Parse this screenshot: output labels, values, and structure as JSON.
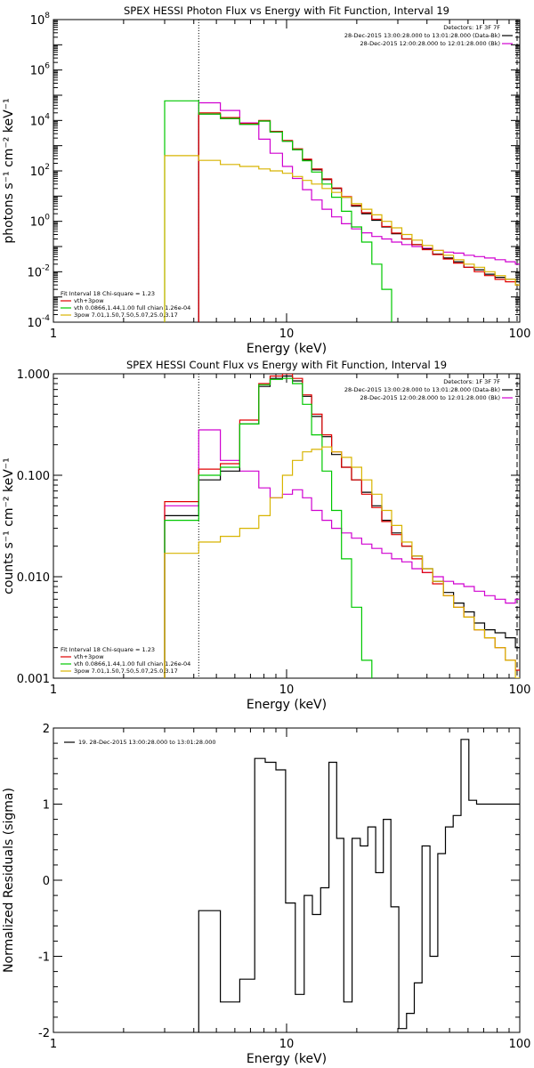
{
  "colors": {
    "black": "#000000",
    "red": "#e00000",
    "green": "#00c800",
    "magenta": "#d000d0",
    "yellow": "#d8b400"
  },
  "chart_data": [
    {
      "type": "line",
      "title": "SPEX HESSI Photon Flux vs Energy with Fit Function, Interval 19",
      "xlabel": "Energy (keV)",
      "ylabel": "photons s⁻¹ cm⁻² keV⁻¹",
      "xscale": "log",
      "yscale": "log",
      "xlim": [
        1,
        100
      ],
      "ylim": [
        0.0001,
        100000000
      ],
      "xtick_labels": [
        {
          "v": 1,
          "t": "1"
        },
        {
          "v": 10,
          "t": "10"
        },
        {
          "v": 100,
          "t": "100"
        }
      ],
      "ytick_labels": [
        {
          "v": 0.0001,
          "b": "10",
          "e": "-4"
        },
        {
          "v": 0.01,
          "b": "10",
          "e": "-2"
        },
        {
          "v": 1,
          "b": "10",
          "e": "0"
        },
        {
          "v": 100,
          "b": "10",
          "e": "2"
        },
        {
          "v": 10000,
          "b": "10",
          "e": "4"
        },
        {
          "v": 1000000,
          "b": "10",
          "e": "6"
        },
        {
          "v": 100000000,
          "b": "10",
          "e": "8"
        }
      ],
      "header_lines": [
        "Detectors: 1F 3F 7F",
        "28-Dec-2015 13:00:28.000 to 13:01:28.000 (Data-Bk)",
        "28-Dec-2015 12:00:28.000 to 12:01:28.000 (Bk)"
      ],
      "header_colors": [
        "black",
        "black",
        "magenta"
      ],
      "legend_title": "Fit Interval 18   Chi-square = 1.23",
      "legend": [
        {
          "label": "vth+3pow",
          "color": "red"
        },
        {
          "label": "vth 0.0866,1.44,1.00  full chian 1.26e-04",
          "color": "green"
        },
        {
          "label": "3pow 7.01,1.50,7.50,5.07,25.0,3.17",
          "color": "yellow"
        }
      ],
      "vline": 4.2,
      "series": [
        {
          "color": "magenta",
          "edges": [
            4.2,
            5.2,
            6.3,
            7.6,
            8.5,
            9.6,
            10.6,
            11.7,
            12.8,
            14.2,
            15.6,
            17.2,
            19.0,
            21.0,
            23.2,
            25.6,
            28.2,
            31.2,
            34.5,
            38.2,
            42.3,
            47.0,
            52.0,
            57.6,
            63.8,
            70.7,
            78.3,
            86.8,
            95.8,
            100
          ],
          "y": [
            50000,
            25000,
            8000,
            1800,
            500,
            150,
            50,
            18,
            7,
            3,
            1.5,
            0.8,
            0.5,
            0.35,
            0.25,
            0.2,
            0.15,
            0.12,
            0.1,
            0.085,
            0.07,
            0.06,
            0.055,
            0.045,
            0.04,
            0.035,
            0.03,
            0.025,
            0.02
          ]
        },
        {
          "color": "black",
          "edges": [
            4.2,
            5.2,
            6.3,
            7.6,
            8.5,
            9.6,
            10.6,
            11.7,
            12.8,
            14.2,
            15.6,
            17.2,
            19.0,
            21.0,
            23.2,
            25.6,
            28.2,
            31.2,
            34.5,
            38.2,
            42.3,
            47.0,
            52.0,
            57.6,
            63.8,
            70.7,
            78.3,
            86.8,
            95.8,
            100
          ],
          "y": [
            18000,
            12000,
            7000,
            9500,
            3500,
            1500,
            700,
            270,
            110,
            45,
            20,
            9,
            4,
            2,
            1.1,
            0.6,
            0.32,
            0.2,
            0.12,
            0.08,
            0.05,
            0.035,
            0.025,
            0.015,
            0.012,
            0.008,
            0.006,
            0.005,
            0.004
          ]
        },
        {
          "color": "red",
          "edges": [
            4.2,
            5.2,
            6.3,
            7.6,
            8.5,
            9.6,
            10.6,
            11.7,
            12.8,
            14.2,
            15.6,
            17.2,
            19.0,
            21.0,
            23.2,
            25.6,
            28.2,
            31.2,
            34.5,
            38.2,
            42.3,
            47.0,
            52.0,
            57.6,
            63.8,
            70.7,
            78.3,
            86.8,
            95.8,
            100
          ],
          "y": [
            20000,
            13000,
            7500,
            10000,
            3700,
            1600,
            750,
            290,
            120,
            48,
            21,
            9.5,
            4.3,
            2.2,
            1.2,
            0.62,
            0.34,
            0.2,
            0.12,
            0.075,
            0.048,
            0.032,
            0.022,
            0.015,
            0.01,
            0.007,
            0.005,
            0.004,
            0.003
          ]
        },
        {
          "color": "green",
          "edges": [
            3.0,
            4.2,
            5.2,
            6.3,
            7.6,
            8.5,
            9.6,
            10.6,
            11.7,
            12.8,
            14.2,
            15.6,
            17.2,
            19.0,
            21.0,
            23.2,
            25.6,
            28.2
          ],
          "y": [
            60000,
            18000,
            12000,
            7000,
            9500,
            3500,
            1500,
            700,
            250,
            90,
            30,
            9,
            2.5,
            0.6,
            0.15,
            0.02,
            0.002,
            0.0001
          ]
        },
        {
          "color": "yellow",
          "edges": [
            3.0,
            4.2,
            5.2,
            6.3,
            7.6,
            8.5,
            9.6,
            10.6,
            11.7,
            12.8,
            14.2,
            15.6,
            17.2,
            19.0,
            21.0,
            23.2,
            25.6,
            28.2,
            31.2,
            34.5,
            38.2,
            42.3,
            47.0,
            52.0,
            57.6,
            63.8,
            70.7,
            78.3,
            86.8,
            95.8,
            100
          ],
          "y": [
            400,
            260,
            180,
            150,
            120,
            100,
            80,
            60,
            42,
            30,
            20,
            14,
            9,
            5,
            3,
            1.8,
            1.0,
            0.55,
            0.3,
            0.18,
            0.11,
            0.07,
            0.045,
            0.03,
            0.02,
            0.015,
            0.01,
            0.007,
            0.005,
            0.003
          ]
        }
      ]
    },
    {
      "type": "line",
      "title": "SPEX HESSI Count Flux vs Energy with Fit Function, Interval 19",
      "xlabel": "Energy (keV)",
      "ylabel": "counts s⁻¹ cm⁻² keV⁻¹",
      "xscale": "log",
      "yscale": "log",
      "xlim": [
        1,
        100
      ],
      "ylim": [
        0.001,
        1.0
      ],
      "xtick_labels": [
        {
          "v": 1,
          "t": "1"
        },
        {
          "v": 10,
          "t": "10"
        },
        {
          "v": 100,
          "t": "100"
        }
      ],
      "ytick_labels": [
        {
          "v": 0.001,
          "t": "0.001"
        },
        {
          "v": 0.01,
          "t": "0.010"
        },
        {
          "v": 0.1,
          "t": "0.100"
        },
        {
          "v": 1,
          "t": "1.000"
        }
      ],
      "header_lines": [
        "Detectors: 1F 3F 7F",
        "28-Dec-2015 13:00:28.000 to 13:01:28.000 (Data-Bk)",
        "28-Dec-2015 12:00:28.000 to 12:01:28.000 (Bk)"
      ],
      "header_colors": [
        "black",
        "black",
        "magenta"
      ],
      "legend_title": "Fit Interval 18   Chi-square = 1.23",
      "legend": [
        {
          "label": "vth+3pow",
          "color": "red"
        },
        {
          "label": "vth 0.0866,1.44,1.00  full chian 1.26e-04",
          "color": "green"
        },
        {
          "label": "3pow 7.01,1.50,7.50,5.07,25.0,3.17",
          "color": "yellow"
        }
      ],
      "vline": 4.2,
      "series": [
        {
          "color": "magenta",
          "edges": [
            3.0,
            4.2,
            5.2,
            6.3,
            7.6,
            8.5,
            9.6,
            10.6,
            11.7,
            12.8,
            14.2,
            15.6,
            17.2,
            19.0,
            21.0,
            23.2,
            25.6,
            28.2,
            31.2,
            34.5,
            38.2,
            42.3,
            47.0,
            52.0,
            57.6,
            63.8,
            70.7,
            78.3,
            86.8,
            95.8,
            100
          ],
          "y": [
            0.05,
            0.28,
            0.14,
            0.11,
            0.075,
            0.06,
            0.065,
            0.072,
            0.06,
            0.045,
            0.036,
            0.03,
            0.027,
            0.024,
            0.021,
            0.019,
            0.017,
            0.015,
            0.014,
            0.012,
            0.011,
            0.01,
            0.009,
            0.0085,
            0.008,
            0.0072,
            0.0065,
            0.006,
            0.0055,
            0.006
          ]
        },
        {
          "color": "black",
          "edges": [
            3.0,
            4.2,
            5.2,
            6.3,
            7.6,
            8.5,
            9.6,
            10.6,
            11.7,
            12.8,
            14.2,
            15.6,
            17.2,
            19.0,
            21.0,
            23.2,
            25.6,
            28.2,
            31.2,
            34.5,
            38.2,
            42.3,
            47.0,
            52.0,
            57.6,
            63.8,
            70.7,
            78.3,
            86.8,
            95.8,
            100
          ],
          "y": [
            0.04,
            0.09,
            0.11,
            0.32,
            0.75,
            0.9,
            0.95,
            0.85,
            0.6,
            0.38,
            0.24,
            0.16,
            0.12,
            0.09,
            0.068,
            0.05,
            0.036,
            0.027,
            0.02,
            0.016,
            0.012,
            0.009,
            0.007,
            0.0055,
            0.0045,
            0.0035,
            0.003,
            0.0028,
            0.0025,
            0.002
          ]
        },
        {
          "color": "red",
          "edges": [
            3.0,
            4.2,
            5.2,
            6.3,
            7.6,
            8.5,
            9.6,
            10.6,
            11.7,
            12.8,
            14.2,
            15.6,
            17.2,
            19.0,
            21.0,
            23.2,
            25.6,
            28.2,
            31.2,
            34.5,
            38.2,
            42.3,
            47.0,
            52.0,
            57.6,
            63.8,
            70.7,
            78.3,
            86.8,
            95.8,
            100
          ],
          "y": [
            0.055,
            0.115,
            0.13,
            0.35,
            0.8,
            0.95,
            1.0,
            0.9,
            0.62,
            0.4,
            0.25,
            0.17,
            0.12,
            0.09,
            0.065,
            0.048,
            0.035,
            0.026,
            0.02,
            0.015,
            0.011,
            0.0085,
            0.0065,
            0.005,
            0.004,
            0.003,
            0.0025,
            0.002,
            0.0015,
            0.0012
          ]
        },
        {
          "color": "green",
          "edges": [
            3.0,
            4.2,
            5.2,
            6.3,
            7.6,
            8.5,
            9.6,
            10.6,
            11.7,
            12.8,
            14.2,
            15.6,
            17.2,
            19.0,
            21.0,
            23.2
          ],
          "y": [
            0.036,
            0.1,
            0.12,
            0.32,
            0.78,
            0.88,
            0.9,
            0.8,
            0.5,
            0.25,
            0.11,
            0.045,
            0.015,
            0.005,
            0.0015,
            0.001
          ]
        },
        {
          "color": "yellow",
          "edges": [
            3.0,
            4.2,
            5.2,
            6.3,
            7.6,
            8.5,
            9.6,
            10.6,
            11.7,
            12.8,
            14.2,
            15.6,
            17.2,
            19.0,
            21.0,
            23.2,
            25.6,
            28.2,
            31.2,
            34.5,
            38.2,
            42.3,
            47.0,
            52.0,
            57.6,
            63.8,
            70.7,
            78.3,
            86.8,
            95.8,
            100
          ],
          "y": [
            0.017,
            0.022,
            0.025,
            0.03,
            0.04,
            0.06,
            0.1,
            0.14,
            0.17,
            0.18,
            0.19,
            0.17,
            0.15,
            0.12,
            0.09,
            0.065,
            0.045,
            0.032,
            0.022,
            0.016,
            0.012,
            0.009,
            0.0065,
            0.005,
            0.004,
            0.003,
            0.0025,
            0.002,
            0.0015,
            0.001
          ]
        }
      ]
    },
    {
      "type": "line",
      "title": "",
      "xlabel": "Energy (keV)",
      "ylabel": "Normalized Residuals (sigma)",
      "xscale": "log",
      "yscale": "linear",
      "xlim": [
        1,
        100
      ],
      "ylim": [
        -2,
        2
      ],
      "xtick_labels": [
        {
          "v": 1,
          "t": "1"
        },
        {
          "v": 10,
          "t": "10"
        },
        {
          "v": 100,
          "t": "100"
        }
      ],
      "ytick_labels": [
        {
          "v": -2,
          "t": "-2"
        },
        {
          "v": -1,
          "t": "-1"
        },
        {
          "v": 0,
          "t": "0"
        },
        {
          "v": 1,
          "t": "1"
        },
        {
          "v": 2,
          "t": "2"
        }
      ],
      "legend": [
        {
          "label": "19. 28-Dec-2015 13:00:28.000 to 13:01:28.000",
          "color": "black"
        }
      ],
      "series": [
        {
          "color": "black",
          "edges": [
            4.2,
            5.2,
            6.3,
            7.3,
            8.1,
            9.0,
            9.9,
            10.9,
            11.9,
            12.9,
            14.0,
            15.2,
            16.4,
            17.6,
            19.1,
            20.7,
            22.3,
            24.1,
            26.0,
            28.0,
            30.3,
            32.7,
            35.3,
            38.1,
            41.2,
            44.5,
            48.0,
            51.8,
            56.0,
            60.5,
            65.3,
            70.5,
            76.2,
            82.3,
            88.8,
            95.9,
            100
          ],
          "y": [
            -0.4,
            -1.6,
            -1.3,
            1.6,
            1.55,
            1.45,
            -0.3,
            -1.5,
            -0.2,
            -0.45,
            -0.1,
            1.55,
            0.55,
            -1.6,
            0.55,
            0.45,
            0.7,
            0.1,
            0.8,
            -0.35,
            -1.95,
            -1.75,
            -1.35,
            0.45,
            -1.0,
            0.35,
            0.7,
            0.85,
            1.85,
            1.05,
            1.0,
            1.0,
            1.0,
            1.0,
            1.0,
            1.0
          ]
        }
      ]
    }
  ]
}
